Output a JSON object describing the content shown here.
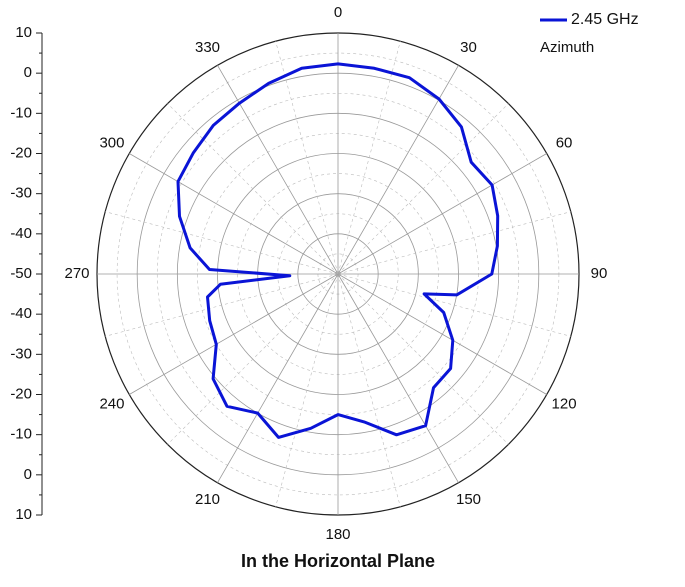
{
  "chart_data": {
    "type": "polar",
    "title": "In the Horizontal Plane",
    "legend_title": "Azimuth",
    "series": [
      {
        "name": "2.45 GHz",
        "color": "#0a14d6",
        "theta": [
          0,
          10,
          20,
          30,
          40,
          50,
          60,
          70,
          80,
          90,
          100,
          103,
          110,
          120,
          130,
          140,
          150,
          160,
          170,
          180,
          190,
          200,
          210,
          220,
          230,
          240,
          250,
          260,
          265,
          268,
          272,
          280,
          290,
          300,
          310,
          320,
          330,
          340,
          350
        ],
        "values": [
          2.3,
          2,
          2,
          0.3,
          -2.2,
          -6.7,
          -5.7,
          -7.7,
          -9.7,
          -11.7,
          -20,
          -28,
          -22,
          -17,
          -13.4,
          -13,
          -6.4,
          -7.4,
          -12.6,
          -15,
          -11,
          -6.7,
          -10,
          -7,
          -9.4,
          -15,
          -16,
          -17,
          -20.6,
          -38,
          -18,
          -12.6,
          -8,
          -4,
          -3,
          -1.7,
          -0.9,
          0.5,
          2
        ]
      }
    ],
    "rlim": [
      -50,
      10
    ],
    "rticks": [
      -50,
      -40,
      -30,
      -20,
      -10,
      0,
      10
    ],
    "thetaticks": [
      0,
      30,
      60,
      90,
      120,
      150,
      180,
      210,
      240,
      270,
      300,
      330
    ],
    "grid": true
  }
}
